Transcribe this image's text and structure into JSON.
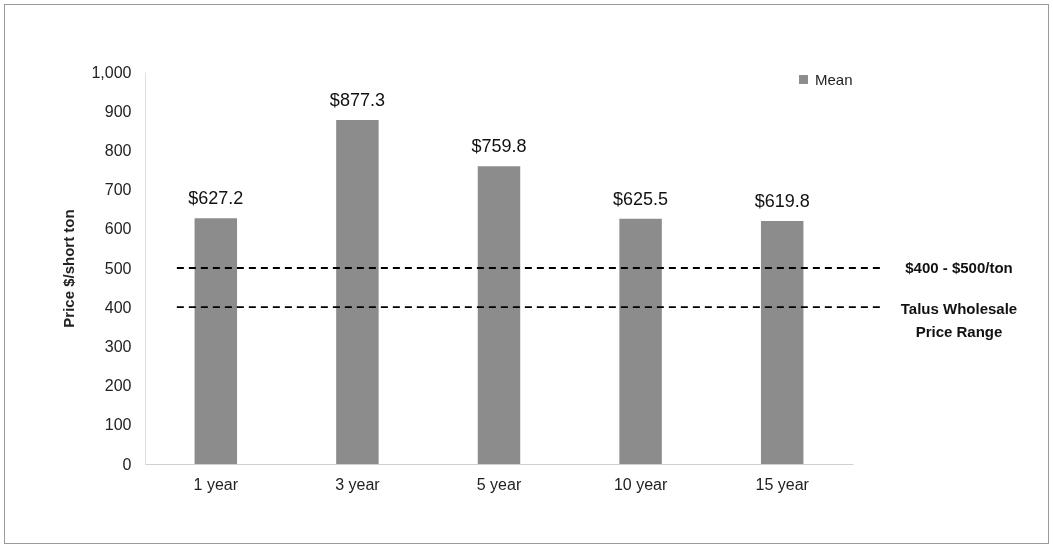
{
  "chart_data": {
    "type": "bar",
    "ylabel": "Price $/short ton",
    "categories": [
      "1 year",
      "3 year",
      "5 year",
      "10 year",
      "15 year"
    ],
    "series": [
      {
        "name": "Mean",
        "color": "#8c8c8c",
        "values": [
          627.2,
          877.3,
          759.8,
          625.5,
          619.8
        ],
        "value_labels": [
          "$627.2",
          "$877.3",
          "$759.8",
          "$625.5",
          "$619.8"
        ]
      }
    ],
    "ylim": [
      0,
      1000
    ],
    "yticks": [
      0,
      100,
      200,
      300,
      400,
      500,
      600,
      700,
      800,
      900,
      {
        "value": 1000,
        "label": "1,000"
      }
    ],
    "ref_lines": [
      {
        "axis": "y",
        "value": 500,
        "label": "$400 - $500/ton",
        "color": "#000000",
        "line_style": "dashed"
      },
      {
        "axis": "y",
        "value": 400,
        "label": "Talus Wholesale Price Range",
        "color": "#000000",
        "line_style": "dashed"
      }
    ],
    "grid": false,
    "legend": "top right"
  }
}
